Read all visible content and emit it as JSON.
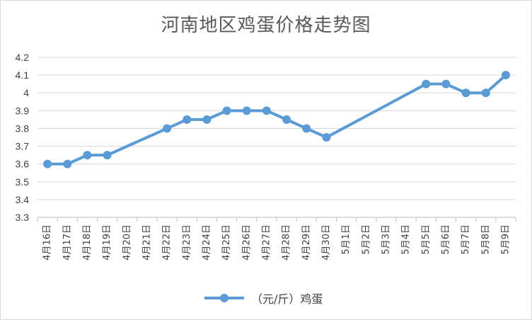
{
  "chart_data": {
    "type": "line",
    "title": "河南地区鸡蛋价格走势图",
    "xlabel": "",
    "ylabel": "",
    "ylim": [
      3.3,
      4.2
    ],
    "yticks": [
      "3.3",
      "3.4",
      "3.5",
      "3.6",
      "3.7",
      "3.8",
      "3.9",
      "4",
      "4.1",
      "4.2"
    ],
    "grid": true,
    "legend_position": "bottom",
    "categories": [
      "4月16日",
      "4月17日",
      "4月18日",
      "4月19日",
      "4月20日",
      "4月21日",
      "4月22日",
      "4月23日",
      "4月24日",
      "4月25日",
      "4月26日",
      "4月27日",
      "4月28日",
      "4月29日",
      "4月30日",
      "5月1日",
      "5月2日",
      "5月3日",
      "5月4日",
      "5月5日",
      "5月6日",
      "5月7日",
      "5月8日",
      "5月9日"
    ],
    "series": [
      {
        "name": "（元/斤）鸡蛋",
        "color": "#5b9bd5",
        "values": [
          3.6,
          3.6,
          3.65,
          3.65,
          null,
          null,
          3.8,
          3.85,
          3.85,
          3.9,
          3.9,
          3.9,
          3.85,
          3.8,
          3.75,
          null,
          null,
          null,
          null,
          4.05,
          4.05,
          4.0,
          4.0,
          4.1
        ]
      }
    ]
  }
}
